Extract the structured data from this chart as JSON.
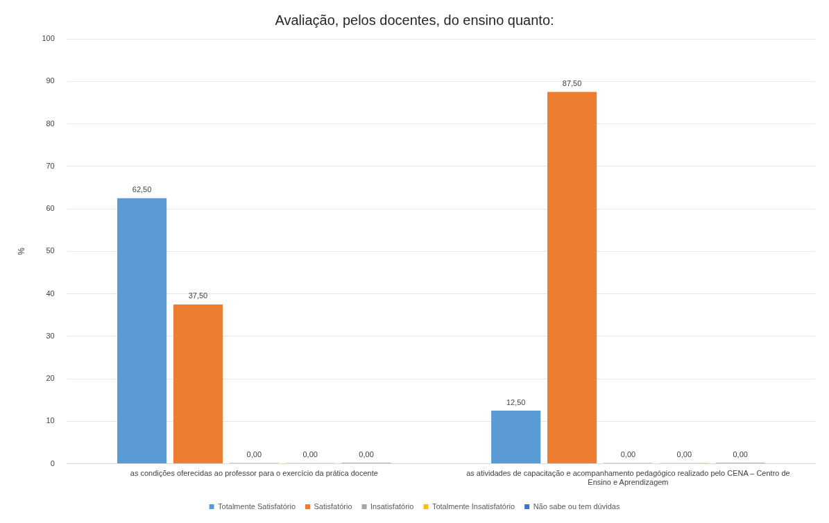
{
  "chart_data": {
    "type": "bar",
    "title": "Avaliação, pelos docentes, do ensino quanto:",
    "ylabel": "%",
    "categories": [
      "as condições oferecidas ao professor para o exercício da prática docente",
      "as atividades de capacitação e acompanhamento pedagógico realizado pelo CENA – Centro de Ensino e Aprendizagem"
    ],
    "series": [
      {
        "name": "Totalmente Satisfatório",
        "color": "#5b9bd5",
        "values": [
          62.5,
          12.5
        ],
        "value_labels": [
          "62,50",
          "12,50"
        ]
      },
      {
        "name": "Satisfatório",
        "color": "#ed7d31",
        "values": [
          37.5,
          87.5
        ],
        "value_labels": [
          "37,50",
          "87,50"
        ]
      },
      {
        "name": "Insatisfatório",
        "color": "#a5a5a5",
        "values": [
          0,
          0
        ],
        "value_labels": [
          "0,00",
          "0,00"
        ]
      },
      {
        "name": "Totalmente Insatisfatório",
        "color": "#ffc000",
        "values": [
          0,
          0
        ],
        "value_labels": [
          "0,00",
          "0,00"
        ]
      },
      {
        "name": "Não sabe ou tem dúvidas",
        "color": "#4472c4",
        "values": [
          0,
          0
        ],
        "value_labels": [
          "0,00",
          "0,00"
        ]
      }
    ],
    "ylim": [
      0,
      100
    ],
    "yticks": [
      0,
      10,
      20,
      30,
      40,
      50,
      60,
      70,
      80,
      90,
      100
    ],
    "grid": "y",
    "legend": "bottom"
  }
}
